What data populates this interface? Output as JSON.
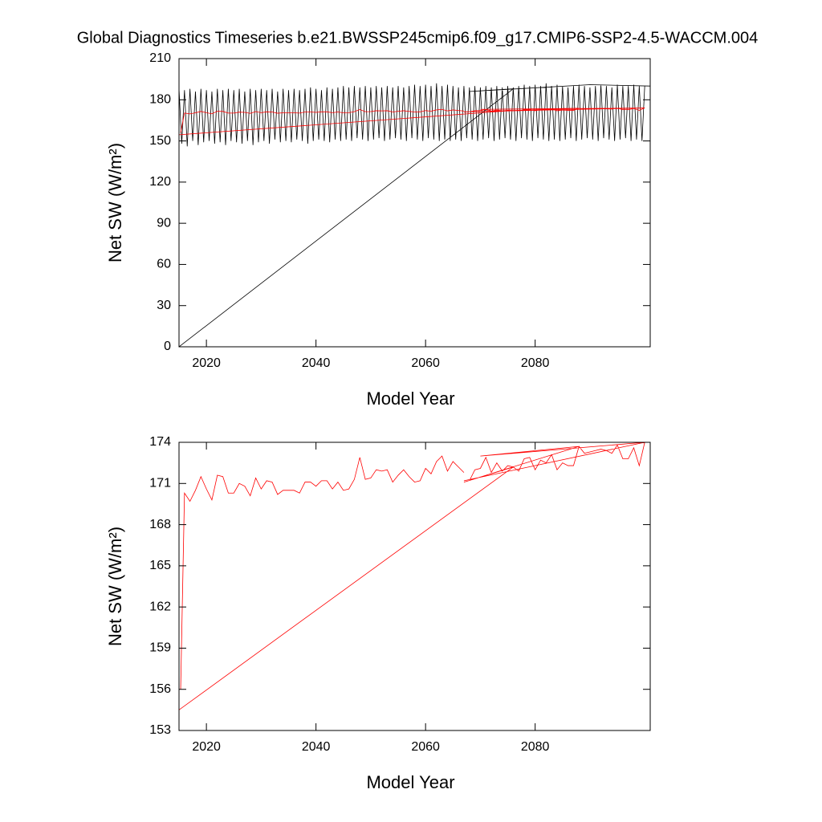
{
  "title": "Global Diagnostics Timeseries b.e21.BWSSP245cmip6.f09_g17.CMIP6-SSP2-4.5-WACCM.004",
  "chart_data": [
    {
      "type": "line",
      "x_label": "Model Year",
      "y_label": "Net SW (W/m²)",
      "xlim": [
        2015,
        2101
      ],
      "xticks": [
        2020,
        2040,
        2060,
        2080
      ],
      "ylim": [
        0,
        210
      ],
      "yticks": [
        0,
        30,
        60,
        90,
        120,
        150,
        180,
        210
      ],
      "series": [
        {
          "color": "#000000",
          "x": [
            2015,
            2015.5,
            2016,
            2016.5,
            2017,
            2017.5,
            2018,
            2018.5,
            2019,
            2019.5,
            2020,
            2020.5,
            2021,
            2021.5,
            2022,
            2022.5,
            2023,
            2023.5,
            2024,
            2024.5,
            2025,
            2025.5,
            2026,
            2026.5,
            2027,
            2027.5,
            2028,
            2028.5,
            2029,
            2029.5,
            2030,
            2030.5,
            2031,
            2031.5,
            2032,
            2032.5,
            2033,
            2033.5,
            2034,
            2034.5,
            2035,
            2035.5,
            2036,
            2036.5,
            2037,
            2037.5,
            2038,
            2038.5,
            2039,
            2039.5,
            2040,
            2040.5,
            2041,
            2041.5,
            2042,
            2042.5,
            2043,
            2043.5,
            2044,
            2044.5,
            2045,
            2045.5,
            2046,
            2046.5,
            2047,
            2047.5,
            2048,
            2048.5,
            2049,
            2049.5,
            2050,
            2050.5,
            2051,
            2051.5,
            2052,
            2052.5,
            2053,
            2053.5,
            2054,
            2054.5,
            2055,
            2055.5,
            2056,
            2056.5,
            2057,
            2057.5,
            2058,
            2058.5,
            2059,
            2059.5,
            2060,
            2060.5,
            2061,
            2061.5,
            2062,
            2062.5,
            2063,
            2063.5,
            2064,
            2064.5,
            2065,
            2065.5,
            2066,
            2066.5,
            2067,
            2067.5,
            2068,
            2068.5,
            2069,
            2069.5,
            2070,
            2070.5,
            2071,
            2071.5,
            2072,
            2072.5,
            2073,
            2073.5,
            2074,
            2074.5,
            2075,
            2075.5,
            2076,
            2076.5,
            2077,
            2077.5,
            2078,
            2078.5,
            2079,
            2079.5,
            2080,
            2080.5,
            2081,
            2081.5,
            2082,
            2082.5,
            2083,
            2083.5,
            2084,
            2084.5,
            2085,
            2085.5,
            2086,
            2086.5,
            2087,
            2087.5,
            2088,
            2088.5,
            2089,
            2089.5,
            2090,
            2090.5,
            2091,
            2091.5,
            2092,
            2092.5,
            2093,
            2093.5,
            2094,
            2094.5,
            2095,
            2095.5,
            2096,
            2096.5,
            2097,
            2097.5,
            2098,
            2098.5,
            2099,
            2099.5,
            2100,
            null,
            2015,
            2076,
            2068,
            2090,
            2101
          ],
          "values": [
            188,
            148,
            187,
            146,
            188,
            150,
            186,
            147,
            188,
            149,
            187,
            150,
            186,
            148,
            188,
            149,
            187,
            147,
            188,
            150,
            187,
            149,
            188,
            148,
            186,
            150,
            188,
            147,
            187,
            149,
            188,
            150,
            187,
            148,
            188,
            151,
            186,
            149,
            188,
            150,
            187,
            149,
            188,
            151,
            187,
            150,
            188,
            148,
            189,
            150,
            188,
            151,
            187,
            150,
            189,
            149,
            188,
            151,
            189,
            150,
            190,
            151,
            189,
            150,
            190,
            152,
            189,
            151,
            190,
            150,
            189,
            151,
            190,
            152,
            189,
            150,
            190,
            151,
            189,
            152,
            190,
            151,
            189,
            150,
            190,
            152,
            191,
            151,
            190,
            150,
            191,
            152,
            190,
            151,
            192,
            150,
            190,
            151,
            191,
            150,
            190,
            151,
            189,
            150,
            190,
            152,
            189,
            151,
            190,
            150,
            189,
            151,
            190,
            152,
            189,
            150,
            190,
            151,
            189,
            152,
            190,
            151,
            189,
            150,
            190,
            152,
            191,
            151,
            190,
            150,
            191,
            152,
            190,
            151,
            192,
            150,
            190,
            151,
            191,
            150,
            190,
            151,
            189,
            152,
            190,
            150,
            191,
            151,
            190,
            152,
            189,
            151,
            190,
            150,
            191,
            152,
            190,
            151,
            189,
            150,
            191,
            151,
            190,
            152,
            190,
            150,
            191,
            151,
            190,
            150,
            190,
            null,
            0,
            188,
            186,
            191,
            190
          ]
        },
        {
          "color": "#ff0000",
          "x": [
            2015.3,
            2016,
            2017,
            2018,
            2019,
            2020,
            2021,
            2022,
            2023,
            2024,
            2025,
            2026,
            2027,
            2028,
            2029,
            2030,
            2031,
            2032,
            2033,
            2034,
            2035,
            2036,
            2037,
            2038,
            2039,
            2040,
            2041,
            2042,
            2043,
            2044,
            2045,
            2046,
            2047,
            2048,
            2049,
            2050,
            2051,
            2052,
            2053,
            2054,
            2055,
            2056,
            2057,
            2058,
            2059,
            2060,
            2061,
            2062,
            2063,
            2064,
            2065,
            2066,
            2067,
            null,
            2015,
            2076,
            2067,
            2088,
            2070,
            2100,
            2067,
            null,
            2068,
            2069,
            2070,
            2071,
            2072,
            2073,
            2074,
            2075,
            2076,
            2077,
            2078,
            2079,
            2080,
            2081,
            2082,
            2083,
            2084,
            2085,
            2086,
            2087,
            2088,
            2089,
            2090,
            2091,
            2092,
            2093,
            2094,
            2095,
            2096,
            2097,
            2098,
            2099,
            2100
          ],
          "values": [
            156,
            170.3,
            169.7,
            170.5,
            171.5,
            170.6,
            169.8,
            171.6,
            171.5,
            170.3,
            170.3,
            171.0,
            170.8,
            170.1,
            171.4,
            170.6,
            171.2,
            171.1,
            170.2,
            170.5,
            170.5,
            170.5,
            170.3,
            171.1,
            171.1,
            170.8,
            171.2,
            171.2,
            170.6,
            171.1,
            170.5,
            170.6,
            171.3,
            172.9,
            171.3,
            171.4,
            172.0,
            171.9,
            172.0,
            171.1,
            171.6,
            172.0,
            171.5,
            171.1,
            171.2,
            172.1,
            171.7,
            172.6,
            173.0,
            171.9,
            172.6,
            172.2,
            171.8,
            null,
            154.5,
            172.2,
            171.1,
            173.7,
            173.0,
            174.0,
            171.2,
            null,
            171.2,
            172.0,
            172.1,
            172.9,
            171.8,
            172.5,
            171.9,
            172.3,
            172.2,
            171.9,
            172.8,
            172.9,
            172.0,
            172.7,
            172.5,
            173.1,
            172.0,
            172.5,
            172.3,
            172.3,
            173.7,
            173.2,
            173.3,
            173.4,
            173.5,
            173.4,
            173.2,
            173.8,
            172.8,
            172.8,
            173.6,
            172.3,
            174.0
          ]
        }
      ]
    },
    {
      "type": "line",
      "x_label": "Model Year",
      "y_label": "Net SW (W/m²)",
      "xlim": [
        2015,
        2101
      ],
      "xticks": [
        2020,
        2040,
        2060,
        2080
      ],
      "ylim": [
        153,
        174
      ],
      "yticks": [
        153,
        156,
        159,
        162,
        165,
        168,
        171,
        174
      ],
      "series": [
        {
          "color": "#ff0000",
          "x": [
            2015.3,
            2016,
            2017,
            2018,
            2019,
            2020,
            2021,
            2022,
            2023,
            2024,
            2025,
            2026,
            2027,
            2028,
            2029,
            2030,
            2031,
            2032,
            2033,
            2034,
            2035,
            2036,
            2037,
            2038,
            2039,
            2040,
            2041,
            2042,
            2043,
            2044,
            2045,
            2046,
            2047,
            2048,
            2049,
            2050,
            2051,
            2052,
            2053,
            2054,
            2055,
            2056,
            2057,
            2058,
            2059,
            2060,
            2061,
            2062,
            2063,
            2064,
            2065,
            2066,
            2067,
            null,
            2015,
            2076,
            2067,
            2088,
            2070,
            2100,
            2067,
            null,
            2068,
            2069,
            2070,
            2071,
            2072,
            2073,
            2074,
            2075,
            2076,
            2077,
            2078,
            2079,
            2080,
            2081,
            2082,
            2083,
            2084,
            2085,
            2086,
            2087,
            2088,
            2089,
            2090,
            2091,
            2092,
            2093,
            2094,
            2095,
            2096,
            2097,
            2098,
            2099,
            2100
          ],
          "values": [
            156,
            170.3,
            169.7,
            170.5,
            171.5,
            170.6,
            169.8,
            171.6,
            171.5,
            170.3,
            170.3,
            171.0,
            170.8,
            170.1,
            171.4,
            170.6,
            171.2,
            171.1,
            170.2,
            170.5,
            170.5,
            170.5,
            170.3,
            171.1,
            171.1,
            170.8,
            171.2,
            171.2,
            170.6,
            171.1,
            170.5,
            170.6,
            171.3,
            172.9,
            171.3,
            171.4,
            172.0,
            171.9,
            172.0,
            171.1,
            171.6,
            172.0,
            171.5,
            171.1,
            171.2,
            172.1,
            171.7,
            172.6,
            173.0,
            171.9,
            172.6,
            172.2,
            171.8,
            null,
            154.5,
            172.2,
            171.1,
            173.7,
            173.0,
            174.0,
            171.2,
            null,
            171.2,
            172.0,
            172.1,
            172.9,
            171.8,
            172.5,
            171.9,
            172.3,
            172.2,
            171.9,
            172.8,
            172.9,
            172.0,
            172.7,
            172.5,
            173.1,
            172.0,
            172.5,
            172.3,
            172.3,
            173.7,
            173.2,
            173.3,
            173.4,
            173.5,
            173.4,
            173.2,
            173.8,
            172.8,
            172.8,
            173.6,
            172.3,
            174.0
          ]
        }
      ]
    }
  ]
}
